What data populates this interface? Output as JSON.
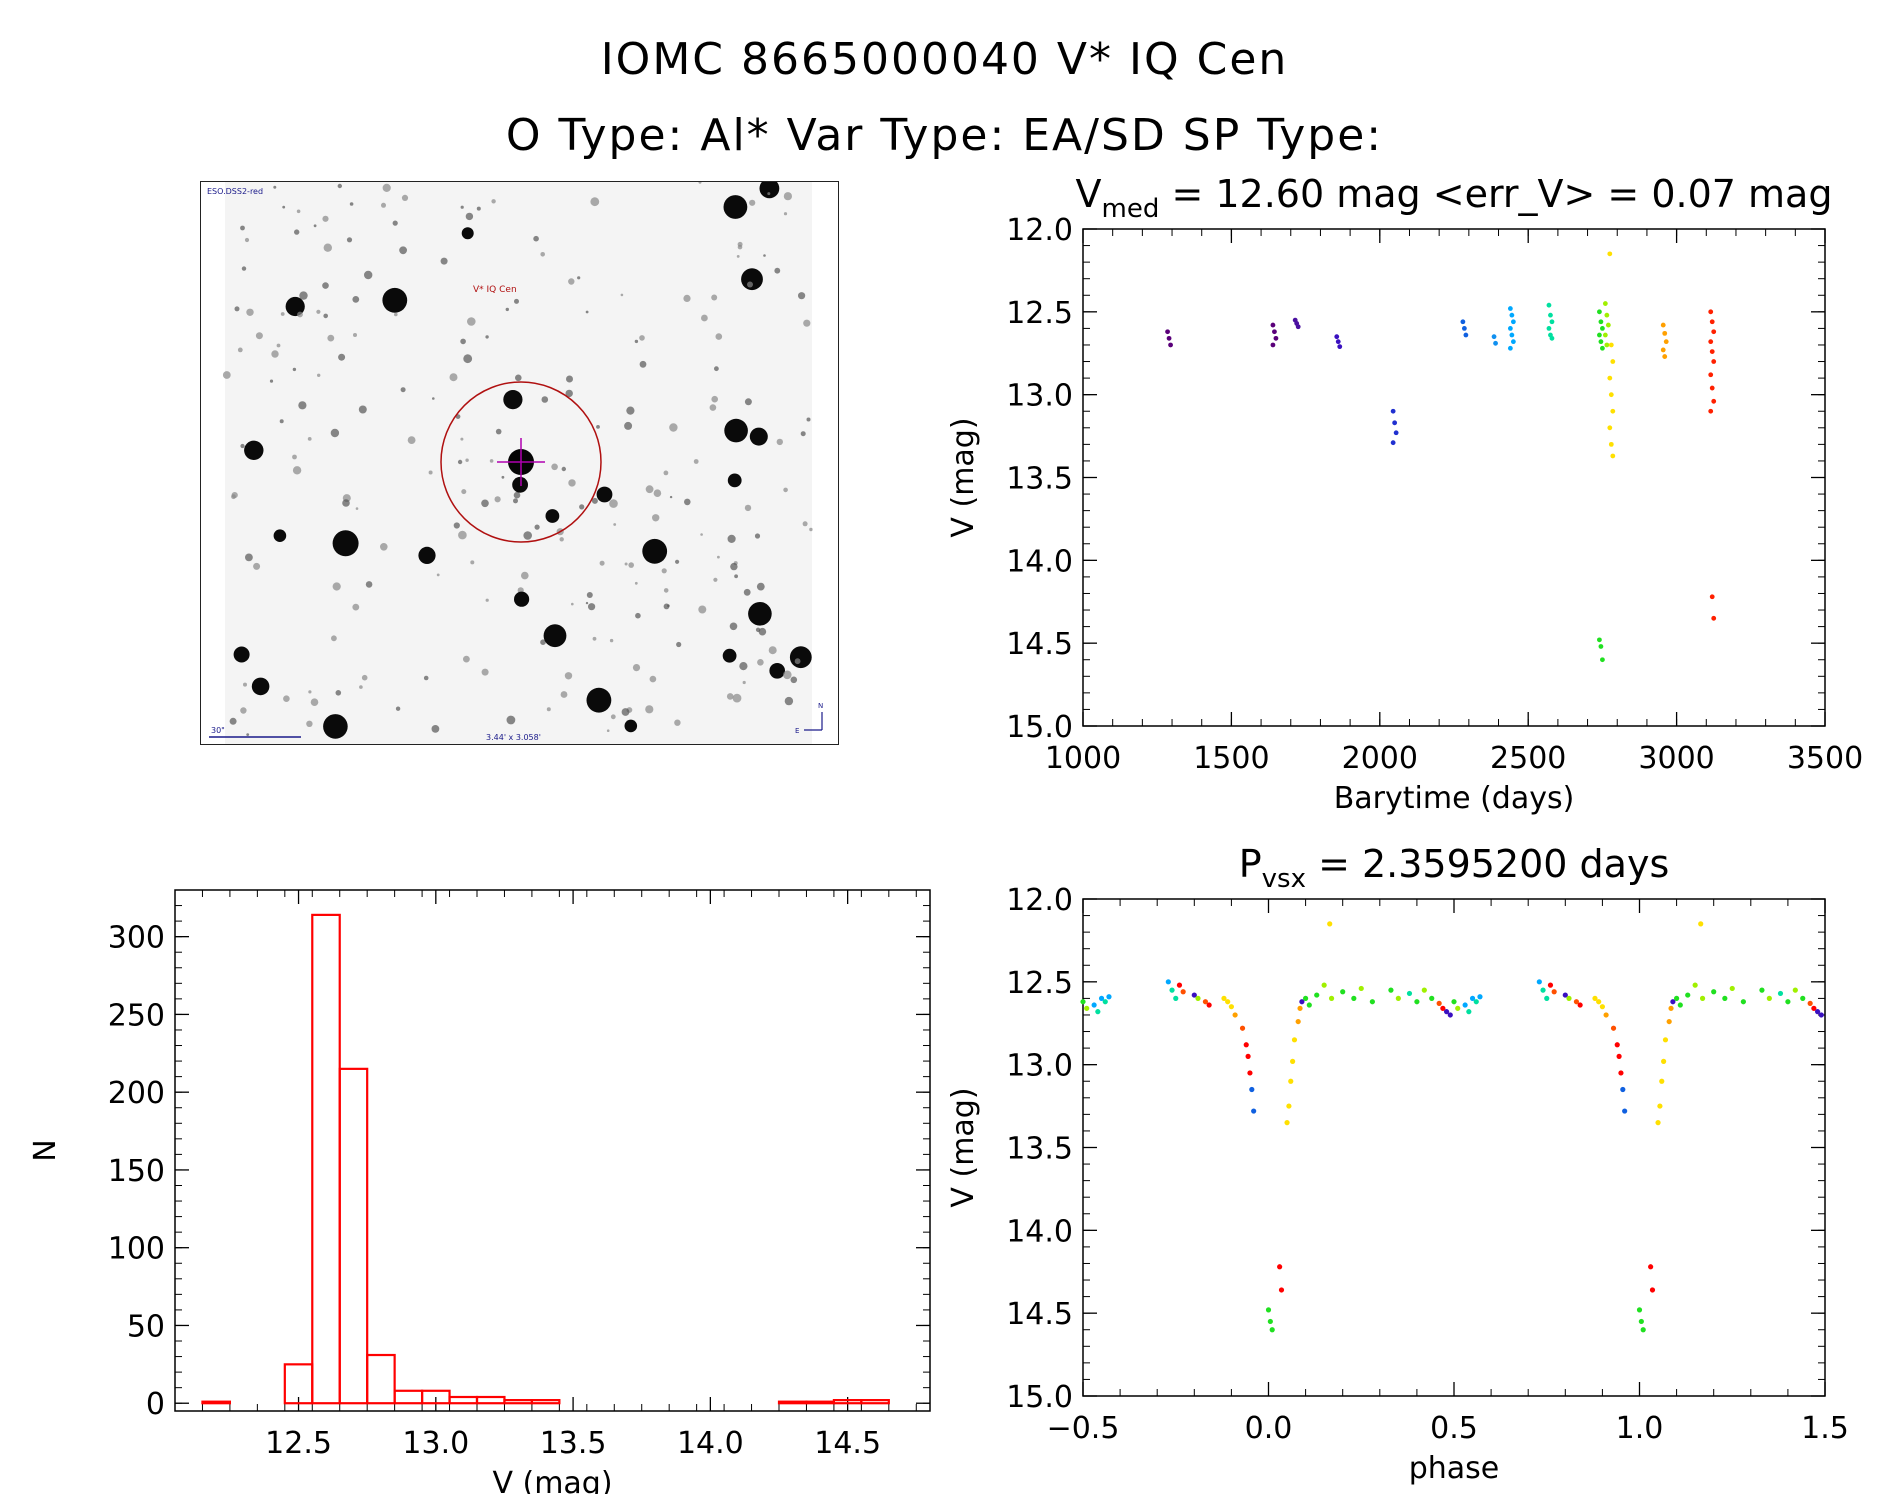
{
  "header": {
    "line1": "IOMC 8665000040    V* IQ Cen",
    "line2": "O Type: Al*  Var Type: EA/SD  SP Type:"
  },
  "finder": {
    "survey_label": "ESO.DSS2-red",
    "target_label": "V* IQ Cen",
    "scale_label": "30\"",
    "fov_label": "3.44' x 3.058'",
    "north_label": "N",
    "east_label": "E",
    "circle_color": "#b01010",
    "crosshair_color": "#b000b0"
  },
  "colors": {
    "histogram": "#ff0000",
    "scale": [
      "#5a007a",
      "#3a10c0",
      "#1060e0",
      "#00a8ff",
      "#00e0a0",
      "#20e020",
      "#a0f000",
      "#ffe000",
      "#ffa000",
      "#ff5000",
      "#ff0000"
    ]
  },
  "chart_data": [
    {
      "id": "lightcurve",
      "type": "scatter",
      "title_main": "V",
      "title_sub": "med",
      "title_rest": " = 12.60 mag <err_V> = 0.07 mag",
      "xlabel": "Barytime (days)",
      "ylabel": "V (mag)",
      "xlim": [
        1000,
        3500
      ],
      "ylim": [
        15.0,
        12.0
      ],
      "xticks": [
        1000,
        1500,
        2000,
        2500,
        3000,
        3500
      ],
      "xtick_labels": [
        "1000",
        "1500",
        "2000",
        "2500",
        "3000",
        "3500"
      ],
      "yticks": [
        12.0,
        12.5,
        13.0,
        13.5,
        14.0,
        14.5,
        15.0
      ],
      "ytick_labels": [
        "12.0",
        "12.5",
        "13.0",
        "13.5",
        "14.0",
        "14.5",
        "15.0"
      ],
      "groups": [
        {
          "x": 1290,
          "mags": [
            12.62,
            12.66,
            12.7
          ],
          "color": "#5a007a"
        },
        {
          "x": 1645,
          "mags": [
            12.58,
            12.62,
            12.66,
            12.7
          ],
          "color": "#5a007a"
        },
        {
          "x": 1720,
          "mags": [
            12.55,
            12.57,
            12.59
          ],
          "color": "#4a10a0"
        },
        {
          "x": 1860,
          "mags": [
            12.65,
            12.68,
            12.71
          ],
          "color": "#3a10c0"
        },
        {
          "x": 2050,
          "mags": [
            13.1,
            13.17,
            13.23,
            13.29
          ],
          "color": "#2030d0"
        },
        {
          "x": 2285,
          "mags": [
            12.56,
            12.6,
            12.64
          ],
          "color": "#1060e0"
        },
        {
          "x": 2390,
          "mags": [
            12.65,
            12.69
          ],
          "color": "#1090f0"
        },
        {
          "x": 2445,
          "mags": [
            12.48,
            12.52,
            12.56,
            12.6,
            12.64,
            12.68,
            12.72
          ],
          "color": "#00a8ff"
        },
        {
          "x": 2575,
          "mags": [
            12.46,
            12.52,
            12.56,
            12.6,
            12.64,
            12.66
          ],
          "color": "#00e0a0"
        },
        {
          "x": 2745,
          "mags": [
            12.5,
            12.56,
            12.6,
            12.64,
            12.68,
            12.72,
            14.48,
            14.52,
            14.6
          ],
          "color": "#20e020"
        },
        {
          "x": 2765,
          "mags": [
            12.45,
            12.52,
            12.58,
            12.64,
            12.7
          ],
          "color": "#a0f000"
        },
        {
          "x": 2780,
          "mags": [
            12.15,
            12.7,
            12.8,
            12.9,
            13.0,
            13.1,
            13.2,
            13.3,
            13.37
          ],
          "color": "#ffe000"
        },
        {
          "x": 2960,
          "mags": [
            12.58,
            12.63,
            12.68,
            12.73,
            12.77
          ],
          "color": "#ffa000"
        },
        {
          "x": 3120,
          "mags": [
            12.5,
            12.56,
            12.62,
            12.68,
            12.74,
            12.8,
            12.88,
            12.96,
            13.04,
            13.1,
            14.22,
            14.35
          ],
          "color": "#ff2000"
        }
      ]
    },
    {
      "id": "histogram",
      "type": "bar",
      "xlabel": "V (mag)",
      "ylabel": "N",
      "xlim": [
        12.05,
        14.8
      ],
      "ylim": [
        -5,
        330
      ],
      "xticks": [
        12.5,
        13.0,
        13.5,
        14.0,
        14.5
      ],
      "xtick_labels": [
        "12.5",
        "13.0",
        "13.5",
        "14.0",
        "14.5"
      ],
      "yticks": [
        0,
        50,
        100,
        150,
        200,
        250,
        300
      ],
      "ytick_labels": [
        "0",
        "50",
        "100",
        "150",
        "200",
        "250",
        "300"
      ],
      "bin_width": 0.1,
      "bin_starts": [
        12.15,
        12.45,
        12.55,
        12.65,
        12.75,
        12.85,
        12.95,
        13.05,
        13.15,
        13.25,
        13.35,
        14.25,
        14.35,
        14.45,
        14.55
      ],
      "counts": [
        1,
        25,
        314,
        215,
        31,
        8,
        8,
        4,
        4,
        2,
        2,
        1,
        1,
        2,
        2
      ]
    },
    {
      "id": "phased",
      "type": "scatter",
      "title_main": "P",
      "title_sub": "vsx",
      "title_rest": " = 2.3595200 days",
      "xlabel": "phase",
      "ylabel": "V (mag)",
      "xlim": [
        -0.5,
        1.5
      ],
      "ylim": [
        15.0,
        12.0
      ],
      "xticks": [
        -0.5,
        0.0,
        0.5,
        1.0,
        1.5
      ],
      "xtick_labels": [
        "−0.5",
        "0.0",
        "0.5",
        "1.0",
        "1.5"
      ],
      "yticks": [
        12.0,
        12.5,
        13.0,
        13.5,
        14.0,
        14.5,
        15.0
      ],
      "ytick_labels": [
        "12.0",
        "12.5",
        "13.0",
        "13.5",
        "14.0",
        "14.5",
        "15.0"
      ],
      "points": [
        [
          -0.5,
          12.62,
          5
        ],
        [
          -0.49,
          12.66,
          6
        ],
        [
          -0.47,
          12.64,
          3
        ],
        [
          -0.46,
          12.68,
          4
        ],
        [
          -0.45,
          12.6,
          3
        ],
        [
          -0.44,
          12.62,
          4
        ],
        [
          -0.43,
          12.59,
          3
        ],
        [
          -0.27,
          12.5,
          3
        ],
        [
          -0.26,
          12.55,
          4
        ],
        [
          -0.25,
          12.6,
          4
        ],
        [
          -0.24,
          12.52,
          10
        ],
        [
          -0.23,
          12.56,
          9
        ],
        [
          -0.2,
          12.58,
          1
        ],
        [
          -0.19,
          12.6,
          6
        ],
        [
          -0.17,
          12.62,
          9
        ],
        [
          -0.16,
          12.64,
          10
        ],
        [
          -0.12,
          12.6,
          7
        ],
        [
          -0.11,
          12.62,
          7
        ],
        [
          -0.1,
          12.65,
          7
        ],
        [
          -0.09,
          12.7,
          8
        ],
        [
          -0.07,
          12.78,
          9
        ],
        [
          -0.06,
          12.88,
          10
        ],
        [
          -0.055,
          12.95,
          10
        ],
        [
          -0.05,
          13.05,
          10
        ],
        [
          -0.045,
          13.15,
          2
        ],
        [
          -0.04,
          13.28,
          2
        ],
        [
          0.0,
          14.48,
          5
        ],
        [
          0.005,
          14.55,
          5
        ],
        [
          0.01,
          14.6,
          5
        ],
        [
          0.03,
          14.22,
          10
        ],
        [
          0.035,
          14.36,
          10
        ],
        [
          0.05,
          13.35,
          7
        ],
        [
          0.055,
          13.25,
          7
        ],
        [
          0.06,
          13.1,
          7
        ],
        [
          0.065,
          12.98,
          7
        ],
        [
          0.07,
          12.85,
          7
        ],
        [
          0.08,
          12.74,
          8
        ],
        [
          0.085,
          12.66,
          8
        ],
        [
          0.09,
          12.62,
          1
        ],
        [
          0.1,
          12.6,
          5
        ],
        [
          0.11,
          12.64,
          5
        ],
        [
          0.13,
          12.58,
          5
        ],
        [
          0.15,
          12.52,
          6
        ],
        [
          0.165,
          12.15,
          7
        ],
        [
          0.17,
          12.6,
          6
        ],
        [
          0.2,
          12.56,
          5
        ],
        [
          0.23,
          12.6,
          5
        ],
        [
          0.25,
          12.54,
          6
        ],
        [
          0.28,
          12.62,
          5
        ],
        [
          0.33,
          12.55,
          5
        ],
        [
          0.35,
          12.6,
          6
        ],
        [
          0.38,
          12.57,
          4
        ],
        [
          0.4,
          12.62,
          5
        ],
        [
          0.42,
          12.55,
          6
        ],
        [
          0.44,
          12.6,
          5
        ],
        [
          0.46,
          12.63,
          9
        ],
        [
          0.47,
          12.66,
          10
        ],
        [
          0.48,
          12.68,
          1
        ],
        [
          0.49,
          12.7,
          1
        ],
        [
          0.5,
          12.62,
          5
        ],
        [
          0.51,
          12.66,
          6
        ],
        [
          0.53,
          12.64,
          3
        ],
        [
          0.54,
          12.68,
          4
        ],
        [
          0.55,
          12.6,
          3
        ],
        [
          0.56,
          12.62,
          4
        ],
        [
          0.57,
          12.59,
          3
        ],
        [
          0.73,
          12.5,
          3
        ],
        [
          0.74,
          12.55,
          4
        ],
        [
          0.75,
          12.6,
          4
        ],
        [
          0.76,
          12.52,
          10
        ],
        [
          0.77,
          12.56,
          9
        ],
        [
          0.8,
          12.58,
          1
        ],
        [
          0.81,
          12.6,
          6
        ],
        [
          0.83,
          12.62,
          9
        ],
        [
          0.84,
          12.64,
          10
        ],
        [
          0.88,
          12.6,
          7
        ],
        [
          0.89,
          12.62,
          7
        ],
        [
          0.9,
          12.65,
          7
        ],
        [
          0.91,
          12.7,
          8
        ],
        [
          0.93,
          12.78,
          9
        ],
        [
          0.94,
          12.88,
          10
        ],
        [
          0.945,
          12.95,
          10
        ],
        [
          0.95,
          13.05,
          10
        ],
        [
          0.955,
          13.15,
          2
        ],
        [
          0.96,
          13.28,
          2
        ],
        [
          1.0,
          14.48,
          5
        ],
        [
          1.005,
          14.55,
          5
        ],
        [
          1.01,
          14.6,
          5
        ],
        [
          1.03,
          14.22,
          10
        ],
        [
          1.035,
          14.36,
          10
        ],
        [
          1.05,
          13.35,
          7
        ],
        [
          1.055,
          13.25,
          7
        ],
        [
          1.06,
          13.1,
          7
        ],
        [
          1.065,
          12.98,
          7
        ],
        [
          1.07,
          12.85,
          7
        ],
        [
          1.08,
          12.74,
          8
        ],
        [
          1.085,
          12.66,
          8
        ],
        [
          1.09,
          12.62,
          1
        ],
        [
          1.1,
          12.6,
          5
        ],
        [
          1.11,
          12.64,
          5
        ],
        [
          1.13,
          12.58,
          5
        ],
        [
          1.15,
          12.52,
          6
        ],
        [
          1.165,
          12.15,
          7
        ],
        [
          1.17,
          12.6,
          6
        ],
        [
          1.2,
          12.56,
          5
        ],
        [
          1.23,
          12.6,
          5
        ],
        [
          1.25,
          12.54,
          6
        ],
        [
          1.28,
          12.62,
          5
        ],
        [
          1.33,
          12.55,
          5
        ],
        [
          1.35,
          12.6,
          6
        ],
        [
          1.38,
          12.57,
          4
        ],
        [
          1.4,
          12.62,
          5
        ],
        [
          1.42,
          12.55,
          6
        ],
        [
          1.44,
          12.6,
          5
        ],
        [
          1.46,
          12.63,
          9
        ],
        [
          1.47,
          12.66,
          10
        ],
        [
          1.48,
          12.68,
          1
        ],
        [
          1.49,
          12.7,
          1
        ]
      ]
    }
  ]
}
